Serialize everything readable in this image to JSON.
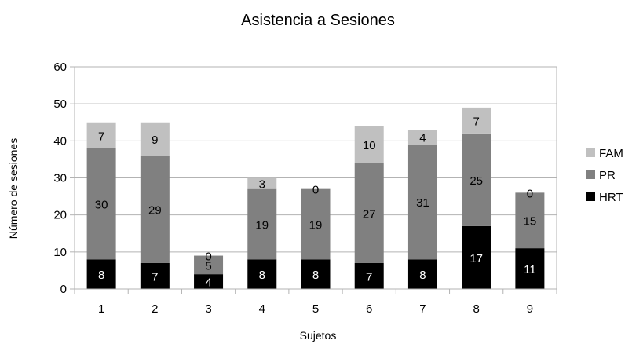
{
  "chart_data": {
    "type": "bar",
    "stacked": true,
    "title": "Asistencia a Sesiones",
    "xlabel": "Sujetos",
    "ylabel": "Número de sesiones",
    "ylim": [
      0,
      60
    ],
    "yticks": [
      0,
      10,
      20,
      30,
      40,
      50,
      60
    ],
    "grid": true,
    "legend_position": "right",
    "categories": [
      "1",
      "2",
      "3",
      "4",
      "5",
      "6",
      "7",
      "8",
      "9"
    ],
    "series": [
      {
        "name": "HRT",
        "color": "#000000",
        "label_color": "#ffffff",
        "values": [
          8,
          7,
          4,
          8,
          8,
          7,
          8,
          17,
          11
        ]
      },
      {
        "name": "PR",
        "color": "#808080",
        "label_color": "#000000",
        "values": [
          30,
          29,
          5,
          19,
          19,
          27,
          31,
          25,
          15
        ]
      },
      {
        "name": "FAM",
        "color": "#c0c0c0",
        "label_color": "#000000",
        "values": [
          7,
          9,
          0,
          3,
          0,
          10,
          4,
          7,
          0
        ]
      }
    ],
    "legend_order": [
      "FAM",
      "PR",
      "HRT"
    ]
  }
}
